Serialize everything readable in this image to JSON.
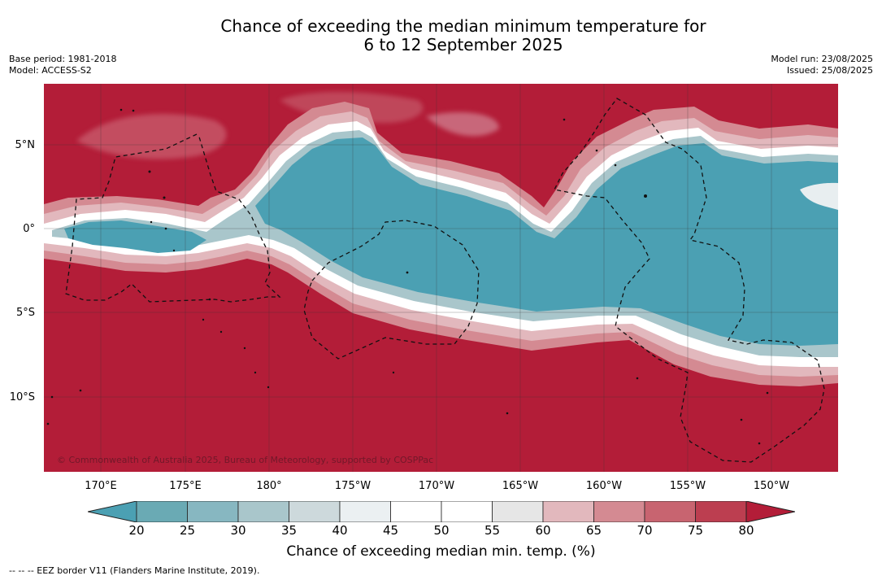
{
  "title_line1": "Chance of exceeding the median minimum temperature for",
  "title_line2": "6 to 12 September 2025",
  "meta_left": {
    "base_period": "Base period: 1981-2018",
    "model": "Model: ACCESS-S2"
  },
  "meta_right": {
    "model_run": "Model run: 23/08/2025",
    "issued": "Issued: 25/08/2025"
  },
  "copyright": "© Commonwealth of Australia 2025, Bureau of Meteorology, supported by COSPPac",
  "lat_labels": [
    "5°N",
    "0°",
    "5°S",
    "10°S"
  ],
  "lon_labels": [
    "170°E",
    "175°E",
    "180°",
    "175°W",
    "170°W",
    "165°W",
    "160°W",
    "155°W",
    "150°W"
  ],
  "colorbar": {
    "ticks": [
      "20",
      "25",
      "30",
      "35",
      "40",
      "45",
      "50",
      "55",
      "60",
      "65",
      "70",
      "75",
      "80"
    ],
    "colors": [
      "#6aaab4",
      "#87b7c1",
      "#a9c6cb",
      "#cdd9dc",
      "#ebf0f2",
      "#ffffff",
      "#ffffff",
      "#e6e6e6",
      "#e2b8bd",
      "#d48a92",
      "#c86470",
      "#bc3e50"
    ],
    "under_color": "#4ba0b3",
    "over_color": "#b31d38",
    "label": "Chance of exceeding median min. temp. (%)"
  },
  "map_colors": {
    "high": "#b31d38",
    "low": "#4ba0b3",
    "neutral": "#ffffff"
  },
  "footnote": "--  --  -- EEZ border V11 (Flanders Marine Institute, 2019)."
}
